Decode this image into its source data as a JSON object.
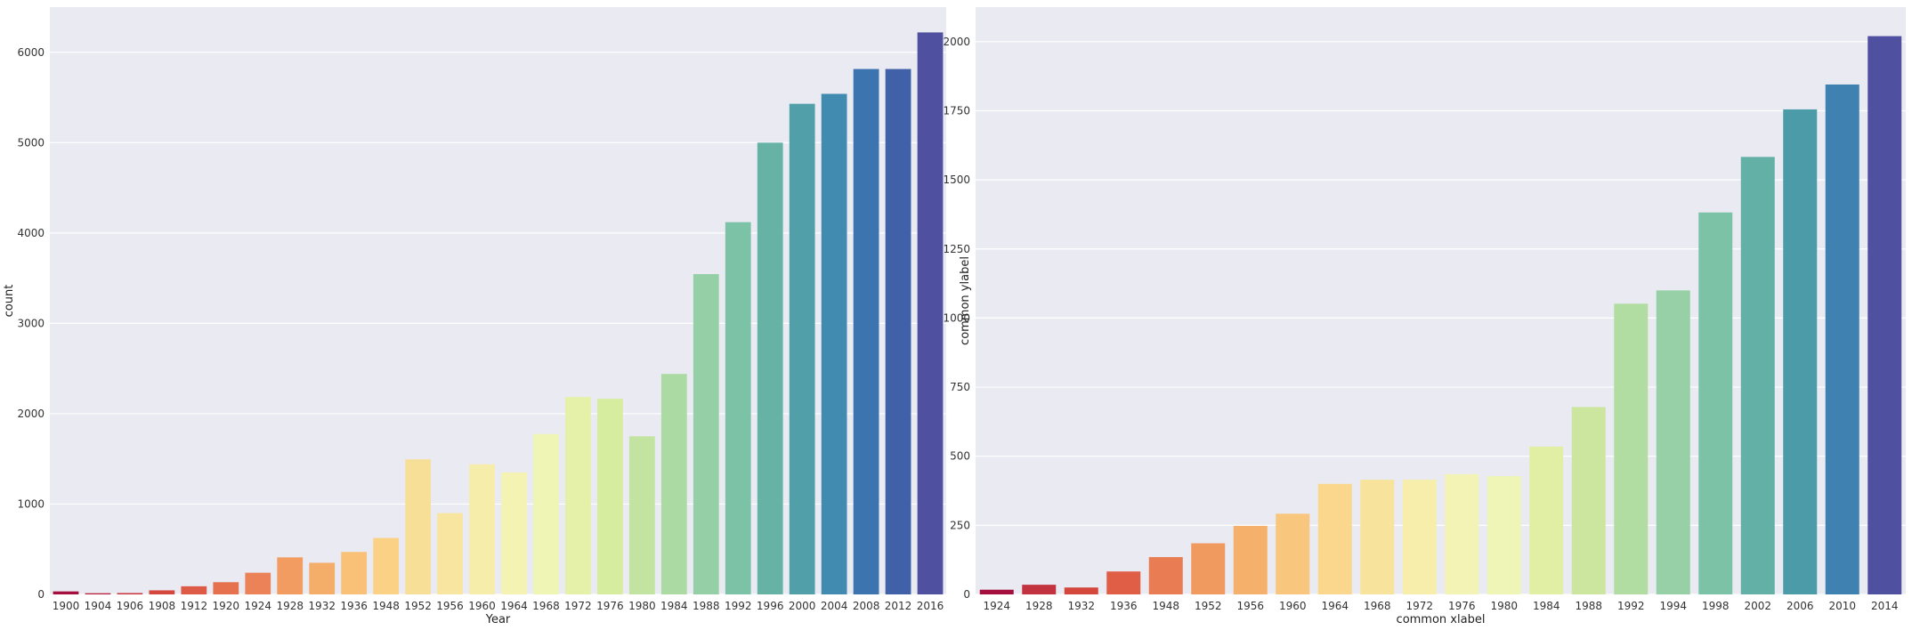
{
  "chart_data": [
    {
      "type": "bar",
      "xlabel": "Year",
      "ylabel": "count",
      "ylim": [
        0,
        6500
      ],
      "yticks": [
        0,
        1000,
        2000,
        3000,
        4000,
        5000,
        6000
      ],
      "grid": true,
      "categories": [
        "1900",
        "1904",
        "1906",
        "1908",
        "1912",
        "1920",
        "1924",
        "1928",
        "1932",
        "1936",
        "1948",
        "1952",
        "1956",
        "1960",
        "1964",
        "1968",
        "1972",
        "1976",
        "1980",
        "1984",
        "1988",
        "1992",
        "1996",
        "2000",
        "2004",
        "2008",
        "2012",
        "2016"
      ],
      "values": [
        33,
        13,
        15,
        45,
        90,
        135,
        240,
        410,
        350,
        470,
        625,
        1495,
        900,
        1440,
        1350,
        1775,
        2185,
        2165,
        1750,
        2440,
        3545,
        4120,
        5000,
        5430,
        5540,
        5815,
        5815,
        6220
      ],
      "colors": [
        "#a50f3e",
        "#b7213f",
        "#c9373f",
        "#d4473c",
        "#dd5b46",
        "#e5714f",
        "#ec8358",
        "#f29c61",
        "#f5ae6a",
        "#f9c178",
        "#fbd185",
        "#f8df97",
        "#f7e5a0",
        "#f6edaa",
        "#f4f3b3",
        "#eff5b5",
        "#e5f1a8",
        "#d6ec9e",
        "#c2e4a0",
        "#acdaa3",
        "#94cfa6",
        "#7cc2a6",
        "#66b3a6",
        "#519fa8",
        "#418ab0",
        "#3c74b0",
        "#4060a8",
        "#5050a0"
      ]
    },
    {
      "type": "bar",
      "xlabel": "common xlabel",
      "ylabel": "common ylabel",
      "ylim": [
        0,
        2125
      ],
      "yticks": [
        0,
        250,
        500,
        750,
        1000,
        1250,
        1500,
        1750,
        2000
      ],
      "grid": true,
      "categories": [
        "1924",
        "1928",
        "1932",
        "1936",
        "1948",
        "1952",
        "1956",
        "1960",
        "1964",
        "1968",
        "1972",
        "1976",
        "1980",
        "1984",
        "1988",
        "1992",
        "1994",
        "1998",
        "2002",
        "2006",
        "2010",
        "2014"
      ],
      "values": [
        17,
        35,
        25,
        83,
        135,
        185,
        248,
        292,
        400,
        415,
        415,
        435,
        428,
        535,
        678,
        1052,
        1100,
        1382,
        1583,
        1755,
        1845,
        2020
      ],
      "colors": [
        "#a50f3e",
        "#c2323f",
        "#d4473c",
        "#e15e46",
        "#ea7c54",
        "#f09a5f",
        "#f5b06b",
        "#f8c67c",
        "#fad78c",
        "#f8e39c",
        "#f6eeaa",
        "#f3f3b5",
        "#eef5b6",
        "#e1efa5",
        "#cce6a0",
        "#b2dda2",
        "#97d0a6",
        "#7bc2a6",
        "#62b0a6",
        "#4c9ba9",
        "#3f82b1",
        "#5050a0"
      ]
    }
  ]
}
